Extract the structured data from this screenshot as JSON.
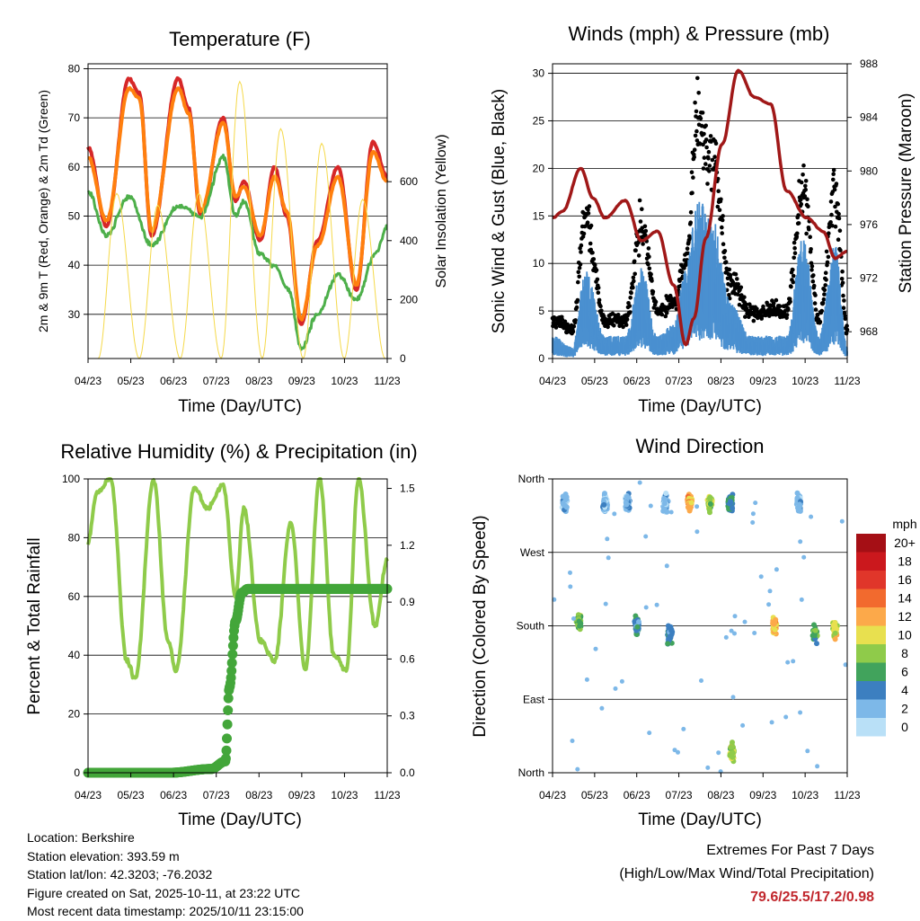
{
  "chart_data": [
    {
      "type": "line",
      "title": "Temperature (F)",
      "xlabel": "Time (Day/UTC)",
      "ylabel": "2m & 9m T (Red, Orange) & 2m Td (Green)",
      "y2label": "Solar Insolation (Yellow)",
      "x_ticks": [
        "04/23",
        "05/23",
        "06/23",
        "07/23",
        "08/23",
        "09/23",
        "10/23",
        "11/23"
      ],
      "ylim": [
        21,
        81
      ],
      "y_ticks": [
        "80",
        "70",
        "60",
        "50",
        "40",
        "30"
      ],
      "y2lim": [
        0,
        1000
      ],
      "y2_ticks": [
        "600",
        "400",
        "200",
        "0"
      ],
      "series": [
        {
          "name": "2m T",
          "color": "#d62728",
          "x": [
            0.0,
            0.45,
            1.0,
            1.25,
            1.55,
            2.2,
            2.45,
            2.75,
            3.3,
            3.6,
            3.8,
            4.2,
            4.55,
            4.85,
            5.2,
            5.6,
            6.1,
            6.55,
            6.95,
            7.3
          ],
          "y": [
            64,
            48,
            78,
            75,
            46,
            78,
            72,
            50,
            70,
            53,
            57,
            45,
            60,
            50,
            28,
            45,
            60,
            35,
            65,
            58
          ]
        },
        {
          "name": "9m T",
          "color": "#ff7f0e",
          "x": [
            0.0,
            0.45,
            1.0,
            1.25,
            1.55,
            2.2,
            2.45,
            2.75,
            3.3,
            3.6,
            3.8,
            4.2,
            4.55,
            4.85,
            5.2,
            5.6,
            6.1,
            6.55,
            6.95,
            7.3
          ],
          "y": [
            62,
            49,
            76,
            74,
            47,
            76,
            71,
            51,
            69,
            54,
            56,
            46,
            58,
            51,
            29,
            44,
            58,
            36,
            63,
            57
          ]
        },
        {
          "name": "2m Td",
          "color": "#4daf4a",
          "x": [
            0.0,
            0.45,
            1.0,
            1.55,
            2.2,
            2.75,
            3.3,
            3.6,
            3.8,
            4.2,
            4.55,
            4.9,
            5.2,
            5.6,
            6.1,
            6.55,
            7.0,
            7.3
          ],
          "y": [
            55,
            46,
            54,
            44,
            52,
            50,
            62,
            50,
            53,
            42,
            40,
            35,
            23,
            30,
            38,
            33,
            42,
            48
          ]
        },
        {
          "name": "Solar Insolation",
          "axis": "y2",
          "color": "#f5d94a",
          "x": [
            0.25,
            0.7,
            1.25,
            1.7,
            2.25,
            2.7,
            3.25,
            3.7,
            4.25,
            4.7,
            5.25,
            5.7,
            6.25,
            6.7,
            7.25
          ],
          "y": [
            0,
            560,
            0,
            520,
            0,
            560,
            0,
            940,
            0,
            780,
            0,
            730,
            0,
            540,
            0
          ]
        }
      ]
    },
    {
      "type": "scatter",
      "title": "Winds (mph) & Pressure (mb)",
      "xlabel": "Time (Day/UTC)",
      "ylabel": "Sonic Wind & Gust (Blue, Black)",
      "y2label": "Station Pressure (Maroon)",
      "x_ticks": [
        "04/23",
        "05/23",
        "06/23",
        "07/23",
        "08/23",
        "09/23",
        "10/23",
        "11/23"
      ],
      "ylim": [
        0,
        31
      ],
      "y_ticks": [
        "30",
        "25",
        "20",
        "15",
        "10",
        "5",
        "0"
      ],
      "y2lim": [
        966,
        988
      ],
      "y2_ticks": [
        "988",
        "984",
        "980",
        "976",
        "972",
        "968"
      ],
      "series": [
        {
          "name": "Gust",
          "color": "#000000",
          "x": [
            0.0,
            0.5,
            0.8,
            1.3,
            1.8,
            2.2,
            2.6,
            3.0,
            3.3,
            3.6,
            4.0,
            4.4,
            4.9,
            5.4,
            5.8,
            6.2,
            6.6,
            7.0,
            7.3
          ],
          "y": [
            4,
            3,
            15,
            4,
            4,
            14,
            5,
            6,
            10,
            25,
            20,
            8,
            5,
            5,
            5,
            18,
            4,
            17,
            3
          ]
        },
        {
          "name": "Sonic Wind",
          "color": "#4a90d0",
          "x": [
            0.0,
            0.5,
            0.8,
            1.3,
            1.8,
            2.2,
            2.6,
            3.0,
            3.3,
            3.6,
            4.0,
            4.4,
            4.9,
            5.4,
            5.8,
            6.2,
            6.6,
            7.0,
            7.3
          ],
          "y": [
            2,
            1,
            8,
            2,
            2,
            8,
            2,
            3,
            8,
            14,
            12,
            5,
            2,
            2,
            2,
            11,
            2,
            10,
            1
          ]
        },
        {
          "name": "Station Pressure",
          "axis": "y2",
          "color": "#a01818",
          "x": [
            0.0,
            0.25,
            0.7,
            1.0,
            1.3,
            1.8,
            2.2,
            2.6,
            3.0,
            3.3,
            3.5,
            3.8,
            4.2,
            4.6,
            5.0,
            5.4,
            5.8,
            6.3,
            6.7,
            7.0,
            7.3
          ],
          "y": [
            976.5,
            977,
            980.2,
            978,
            976.5,
            977.8,
            974.8,
            975.5,
            971.5,
            967,
            969,
            975,
            982,
            987.5,
            985.5,
            985,
            978.5,
            976.5,
            975.5,
            973.5,
            974
          ]
        }
      ]
    },
    {
      "type": "line",
      "title": "Relative Humidity (%) & Precipitation (in)",
      "xlabel": "Time (Day/UTC)",
      "ylabel": "Percent & Total Rainfall",
      "x_ticks": [
        "04/23",
        "05/23",
        "06/23",
        "07/23",
        "08/23",
        "09/23",
        "10/23",
        "11/23"
      ],
      "ylim": [
        0,
        100
      ],
      "y_ticks": [
        "100",
        "80",
        "60",
        "40",
        "20",
        "0"
      ],
      "y2lim": [
        0,
        1.55
      ],
      "y2_ticks": [
        "1.5",
        "1.2",
        "0.9",
        "0.6",
        "0.3",
        "0.0"
      ],
      "series": [
        {
          "name": "Relative Humidity",
          "color": "#8fcb4a",
          "x": [
            0.0,
            0.2,
            0.55,
            0.95,
            1.15,
            1.6,
            1.95,
            2.15,
            2.6,
            2.9,
            3.3,
            3.6,
            3.8,
            4.2,
            4.55,
            4.95,
            5.3,
            5.65,
            6.0,
            6.3,
            6.6,
            7.0,
            7.3
          ],
          "y": [
            78,
            95,
            100,
            38,
            32,
            100,
            45,
            35,
            97,
            90,
            98,
            60,
            90,
            45,
            38,
            85,
            35,
            100,
            40,
            35,
            100,
            50,
            72
          ]
        },
        {
          "name": "Total Rainfall",
          "axis": "y2",
          "color": "#43a63a",
          "x": [
            0.0,
            1.0,
            2.0,
            3.0,
            3.35,
            3.45,
            3.6,
            3.75,
            3.9,
            4.5,
            5.5,
            6.5,
            7.3
          ],
          "y": [
            0.0,
            0.0,
            0.0,
            0.02,
            0.06,
            0.45,
            0.8,
            0.95,
            0.97,
            0.97,
            0.97,
            0.97,
            0.97
          ]
        }
      ]
    },
    {
      "type": "scatter",
      "title": "Wind Direction",
      "xlabel": "Time (Day/UTC)",
      "ylabel": "Direction (Colored By Speed)",
      "x_ticks": [
        "04/23",
        "05/23",
        "06/23",
        "07/23",
        "08/23",
        "09/23",
        "10/23",
        "11/23"
      ],
      "y_ticks": [
        "North",
        "West",
        "South",
        "East",
        "North"
      ],
      "ylim": [
        0,
        360
      ],
      "colorbar_title": "mph",
      "colorbar_labels": [
        "20+",
        "18",
        "16",
        "14",
        "12",
        "10",
        "8",
        "6",
        "4",
        "2",
        "0"
      ],
      "colorbar_colors": [
        "#a50f15",
        "#cb181d",
        "#e0362a",
        "#f26a2e",
        "#fca94a",
        "#e8e04f",
        "#8fcb4a",
        "#41a35c",
        "#3c7fc0",
        "#7db8e8",
        "#b9e0f7"
      ],
      "clusters": [
        {
          "x": 0.3,
          "dir": 330,
          "speed": 2
        },
        {
          "x": 0.65,
          "dir": 185,
          "speed": 7
        },
        {
          "x": 1.3,
          "dir": 330,
          "speed": 2
        },
        {
          "x": 1.85,
          "dir": 330,
          "speed": 2
        },
        {
          "x": 2.1,
          "dir": 180,
          "speed": 5
        },
        {
          "x": 2.8,
          "dir": 330,
          "speed": 2
        },
        {
          "x": 2.9,
          "dir": 170,
          "speed": 4
        },
        {
          "x": 3.4,
          "dir": 330,
          "speed": 12
        },
        {
          "x": 3.9,
          "dir": 330,
          "speed": 9
        },
        {
          "x": 4.4,
          "dir": 330,
          "speed": 5
        },
        {
          "x": 4.45,
          "dir": 25,
          "speed": 9
        },
        {
          "x": 5.5,
          "dir": 180,
          "speed": 11
        },
        {
          "x": 6.1,
          "dir": 330,
          "speed": 2
        },
        {
          "x": 6.5,
          "dir": 170,
          "speed": 6
        },
        {
          "x": 7.0,
          "dir": 175,
          "speed": 10
        }
      ]
    }
  ],
  "footer": {
    "location": "Location: Berkshire",
    "elevation": "Station elevation: 393.59 m",
    "latlon": "Station lat/lon: 42.3203; -76.2032",
    "created": "Figure created on Sat, 2025-10-11, at 23:22 UTC",
    "recent": "Most recent data timestamp: 2025/10/11 23:15:00"
  },
  "extremes": {
    "line1": "Extremes For Past 7 Days",
    "line2": "(High/Low/Max Wind/Total Precipitation)",
    "values": "79.6/25.5/17.2/0.98"
  }
}
